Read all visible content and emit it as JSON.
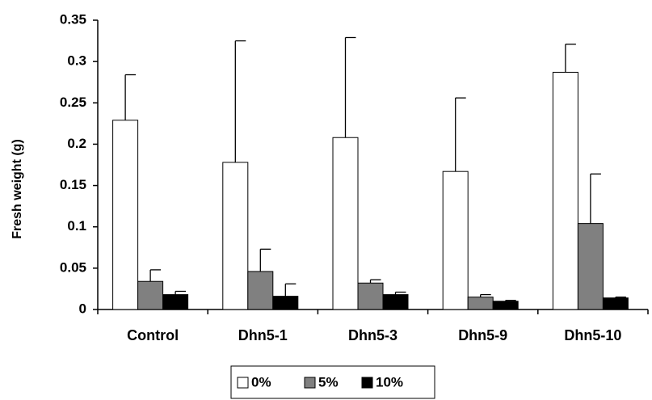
{
  "chart_data": {
    "type": "bar",
    "title": "",
    "xlabel": "",
    "ylabel": "Fresh weight (g)",
    "ylim": [
      0,
      0.35
    ],
    "yticks": [
      "0",
      "0.05",
      "0.1",
      "0.15",
      "0.2",
      "0.25",
      "0.3",
      "0.35"
    ],
    "categories": [
      "Control",
      "Dhn5-1",
      "Dhn5-3",
      "Dhn5-9",
      "Dhn5-10"
    ],
    "series": [
      {
        "name": "0%",
        "color": "#ffffff",
        "values": [
          0.229,
          0.178,
          0.208,
          0.167,
          0.287
        ],
        "errors": [
          0.055,
          0.147,
          0.121,
          0.089,
          0.034
        ]
      },
      {
        "name": "5%",
        "color": "#808080",
        "values": [
          0.034,
          0.046,
          0.032,
          0.015,
          0.104
        ],
        "errors": [
          0.014,
          0.027,
          0.004,
          0.003,
          0.06
        ]
      },
      {
        "name": "10%",
        "color": "#000000",
        "values": [
          0.018,
          0.016,
          0.018,
          0.01,
          0.014
        ],
        "errors": [
          0.004,
          0.015,
          0.003,
          0.001,
          0.001
        ]
      }
    ],
    "grid": false,
    "legend": "bottom"
  }
}
